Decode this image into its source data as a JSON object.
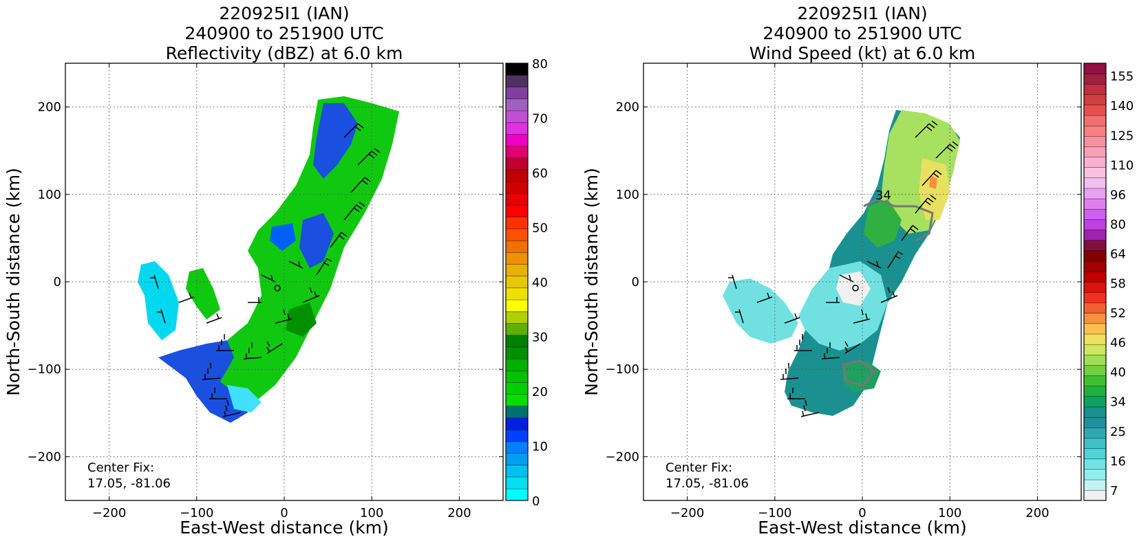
{
  "chart_data": [
    {
      "type": "heatmap",
      "title_lines": [
        "220925I1 (IAN)",
        "240900 to 251900 UTC",
        "Reflectivity (dBZ) at 6.0 km"
      ],
      "xlabel": "East-West distance (km)",
      "ylabel": "North-South distance (km)",
      "xlim": [
        -250,
        250
      ],
      "ylim": [
        -250,
        250
      ],
      "xticks": [
        -200,
        -100,
        0,
        100,
        200
      ],
      "yticks": [
        -200,
        -100,
        0,
        100,
        200
      ],
      "grid": true,
      "center_fix_label": "Center Fix:",
      "center_fix_value": "17.05, -81.06",
      "colorbar": {
        "min": 0,
        "max": 80,
        "labels": [
          0,
          10,
          20,
          30,
          40,
          50,
          60,
          70,
          80
        ],
        "colors": [
          "#00ffff",
          "#00e0f0",
          "#00c0f0",
          "#00a0f0",
          "#0080ff",
          "#0040ff",
          "#0020e0",
          "#007070",
          "#00e000",
          "#00d000",
          "#00c000",
          "#00b000",
          "#009000",
          "#008000",
          "#60b000",
          "#b0d000",
          "#ffff00",
          "#f0e000",
          "#e8c800",
          "#e8b000",
          "#f09000",
          "#f07000",
          "#ff5000",
          "#ff3000",
          "#ff0000",
          "#e80000",
          "#d00000",
          "#c00000",
          "#c00030",
          "#e00070",
          "#f000c0",
          "#e030e0",
          "#c050d0",
          "#a060c0",
          "#8040a0",
          "#503060",
          "#000000"
        ]
      },
      "wind_barbs": true
    },
    {
      "type": "heatmap",
      "title_lines": [
        "220925I1 (IAN)",
        "240900 to 251900 UTC",
        "Wind Speed (kt) at 6.0 km"
      ],
      "xlabel": "East-West distance (km)",
      "ylabel": "North-South distance (km)",
      "xlim": [
        -250,
        250
      ],
      "ylim": [
        -250,
        250
      ],
      "xticks": [
        -200,
        -100,
        0,
        100,
        200
      ],
      "yticks": [
        -200,
        -100,
        0,
        100,
        200
      ],
      "grid": true,
      "center_fix_label": "Center Fix:",
      "center_fix_value": "17.05, -81.06",
      "contour_label": "34",
      "colorbar": {
        "labels": [
          7,
          16,
          25,
          34,
          40,
          46,
          52,
          58,
          64,
          80,
          96,
          110,
          125,
          140,
          155
        ],
        "colors": [
          "#f0f0f0",
          "#c0f4f4",
          "#90f0f0",
          "#70e4e4",
          "#50d4d8",
          "#40c0c8",
          "#30a8b4",
          "#2090a0",
          "#189090",
          "#10a060",
          "#20b040",
          "#40c030",
          "#70d040",
          "#a0e050",
          "#d0e860",
          "#f0e060",
          "#f8c050",
          "#f89040",
          "#f06030",
          "#f03020",
          "#e01010",
          "#c00000",
          "#a00000",
          "#800000",
          "#801040",
          "#a020b0",
          "#c040e0",
          "#d060f0",
          "#e080f0",
          "#e8a0f0",
          "#f0c0f0",
          "#f8c0e0",
          "#f8b0d0",
          "#f8a0b8",
          "#f890a0",
          "#f88080",
          "#f07070",
          "#e85050",
          "#d04040",
          "#c03040",
          "#a02040",
          "#901040"
        ]
      },
      "wind_barbs": true
    }
  ]
}
